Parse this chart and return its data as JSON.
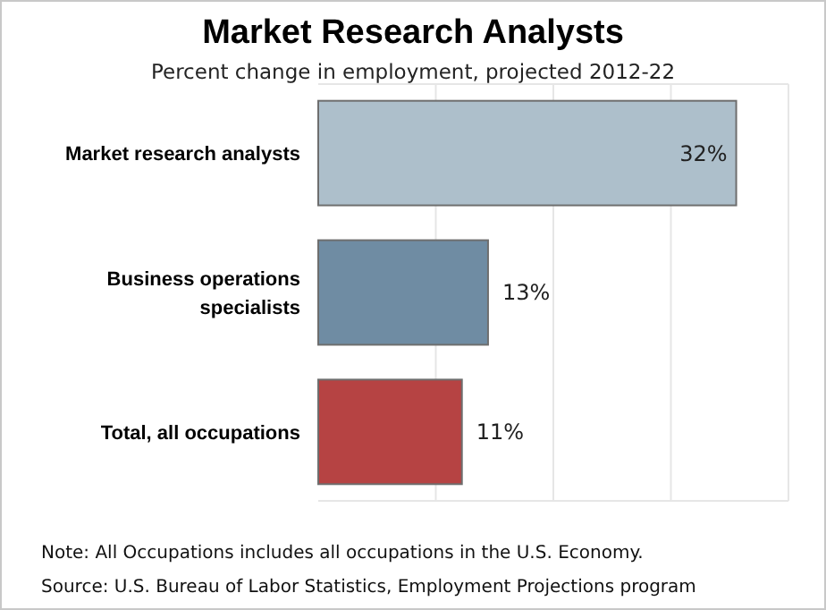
{
  "chart_data": {
    "type": "bar",
    "orientation": "horizontal",
    "title": "Market Research Analysts",
    "subtitle": "Percent change in employment, projected 2012-22",
    "categories": [
      "Market research analysts",
      "Business operations specialists",
      "Total, all occupations"
    ],
    "values": [
      32,
      13,
      11
    ],
    "colors": [
      "#adbfcb",
      "#6f8ca3",
      "#b64343"
    ],
    "value_labels": [
      "32%",
      "13%",
      "11%"
    ],
    "xlim": [
      0,
      36
    ],
    "xticks": [
      {
        "value": 9,
        "label": null
      },
      {
        "value": 18,
        "label": null
      },
      {
        "value": 27,
        "label": null
      },
      {
        "value": 36,
        "label": null
      }
    ],
    "grid": "x",
    "tick_labels": "y",
    "annotations": [
      "Note: All Occupations includes all occupations in the U.S. Economy.",
      "Source: U.S. Bureau of Labor Statistics, Employment Projections program"
    ]
  }
}
